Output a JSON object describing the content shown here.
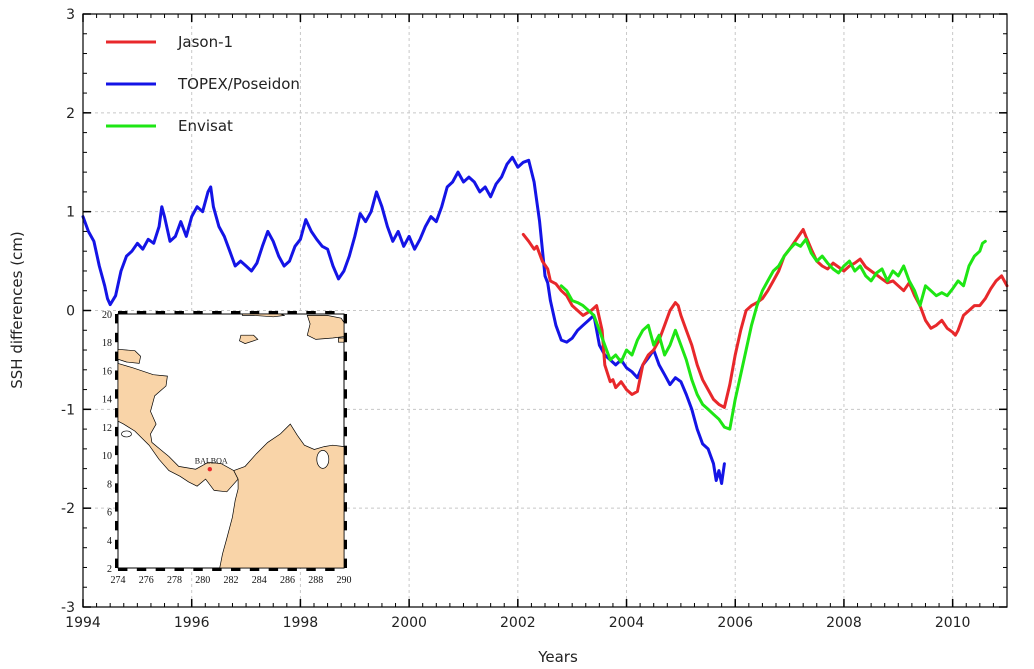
{
  "chart_data": {
    "type": "line",
    "xlabel": "Years",
    "ylabel": "SSH differences (cm)",
    "xlim": [
      1994,
      2011
    ],
    "ylim": [
      -3,
      3
    ],
    "x_ticks": [
      "1994",
      "1996",
      "1998",
      "2000",
      "2002",
      "2004",
      "2006",
      "2008",
      "2010"
    ],
    "y_ticks": [
      "3",
      "2",
      "1",
      "0",
      "-1",
      "-2",
      "-3"
    ],
    "grid": true,
    "legend_position": "top-left",
    "series": [
      {
        "name": "Jason-1",
        "color": "#e8282b",
        "points": [
          [
            2002.1,
            0.77
          ],
          [
            2002.2,
            0.7
          ],
          [
            2002.3,
            0.62
          ],
          [
            2002.35,
            0.65
          ],
          [
            2002.45,
            0.5
          ],
          [
            2002.55,
            0.42
          ],
          [
            2002.6,
            0.3
          ],
          [
            2002.7,
            0.27
          ],
          [
            2002.8,
            0.2
          ],
          [
            2002.9,
            0.15
          ],
          [
            2003.0,
            0.05
          ],
          [
            2003.1,
            0.0
          ],
          [
            2003.2,
            -0.05
          ],
          [
            2003.35,
            0.0
          ],
          [
            2003.45,
            0.05
          ],
          [
            2003.55,
            -0.2
          ],
          [
            2003.6,
            -0.55
          ],
          [
            2003.7,
            -0.72
          ],
          [
            2003.75,
            -0.7
          ],
          [
            2003.8,
            -0.78
          ],
          [
            2003.9,
            -0.72
          ],
          [
            2004.0,
            -0.8
          ],
          [
            2004.1,
            -0.85
          ],
          [
            2004.2,
            -0.82
          ],
          [
            2004.3,
            -0.55
          ],
          [
            2004.4,
            -0.45
          ],
          [
            2004.5,
            -0.4
          ],
          [
            2004.6,
            -0.3
          ],
          [
            2004.7,
            -0.15
          ],
          [
            2004.8,
            0.0
          ],
          [
            2004.9,
            0.08
          ],
          [
            2004.95,
            0.05
          ],
          [
            2005.0,
            -0.05
          ],
          [
            2005.1,
            -0.2
          ],
          [
            2005.2,
            -0.35
          ],
          [
            2005.3,
            -0.55
          ],
          [
            2005.4,
            -0.7
          ],
          [
            2005.5,
            -0.8
          ],
          [
            2005.6,
            -0.9
          ],
          [
            2005.7,
            -0.95
          ],
          [
            2005.8,
            -0.98
          ],
          [
            2005.9,
            -0.75
          ],
          [
            2006.0,
            -0.45
          ],
          [
            2006.1,
            -0.2
          ],
          [
            2006.2,
            0.0
          ],
          [
            2006.3,
            0.05
          ],
          [
            2006.4,
            0.08
          ],
          [
            2006.5,
            0.12
          ],
          [
            2006.6,
            0.2
          ],
          [
            2006.7,
            0.3
          ],
          [
            2006.8,
            0.4
          ],
          [
            2006.9,
            0.55
          ],
          [
            2007.0,
            0.62
          ],
          [
            2007.1,
            0.7
          ],
          [
            2007.2,
            0.78
          ],
          [
            2007.25,
            0.82
          ],
          [
            2007.3,
            0.75
          ],
          [
            2007.4,
            0.62
          ],
          [
            2007.5,
            0.5
          ],
          [
            2007.6,
            0.45
          ],
          [
            2007.7,
            0.42
          ],
          [
            2007.8,
            0.48
          ],
          [
            2007.9,
            0.44
          ],
          [
            2008.0,
            0.4
          ],
          [
            2008.1,
            0.45
          ],
          [
            2008.2,
            0.48
          ],
          [
            2008.3,
            0.52
          ],
          [
            2008.4,
            0.44
          ],
          [
            2008.5,
            0.4
          ],
          [
            2008.6,
            0.36
          ],
          [
            2008.7,
            0.32
          ],
          [
            2008.8,
            0.28
          ],
          [
            2008.9,
            0.3
          ],
          [
            2009.0,
            0.25
          ],
          [
            2009.1,
            0.2
          ],
          [
            2009.2,
            0.28
          ],
          [
            2009.3,
            0.15
          ],
          [
            2009.4,
            0.05
          ],
          [
            2009.5,
            -0.1
          ],
          [
            2009.6,
            -0.18
          ],
          [
            2009.7,
            -0.15
          ],
          [
            2009.8,
            -0.1
          ],
          [
            2009.9,
            -0.18
          ],
          [
            2010.0,
            -0.22
          ],
          [
            2010.05,
            -0.25
          ],
          [
            2010.1,
            -0.2
          ],
          [
            2010.2,
            -0.05
          ],
          [
            2010.3,
            0.0
          ],
          [
            2010.4,
            0.05
          ],
          [
            2010.5,
            0.05
          ],
          [
            2010.6,
            0.12
          ],
          [
            2010.7,
            0.22
          ],
          [
            2010.8,
            0.3
          ],
          [
            2010.9,
            0.35
          ],
          [
            2010.95,
            0.3
          ],
          [
            2011.0,
            0.25
          ]
        ]
      },
      {
        "name": "TOPEX/Poseidon",
        "color": "#1414e6",
        "points": [
          [
            1994.0,
            0.95
          ],
          [
            1994.1,
            0.8
          ],
          [
            1994.2,
            0.7
          ],
          [
            1994.3,
            0.45
          ],
          [
            1994.4,
            0.25
          ],
          [
            1994.45,
            0.12
          ],
          [
            1994.5,
            0.06
          ],
          [
            1994.6,
            0.15
          ],
          [
            1994.7,
            0.4
          ],
          [
            1994.8,
            0.55
          ],
          [
            1994.9,
            0.6
          ],
          [
            1995.0,
            0.68
          ],
          [
            1995.1,
            0.62
          ],
          [
            1995.2,
            0.72
          ],
          [
            1995.3,
            0.68
          ],
          [
            1995.4,
            0.85
          ],
          [
            1995.45,
            1.05
          ],
          [
            1995.5,
            0.95
          ],
          [
            1995.6,
            0.7
          ],
          [
            1995.7,
            0.75
          ],
          [
            1995.8,
            0.9
          ],
          [
            1995.9,
            0.75
          ],
          [
            1996.0,
            0.95
          ],
          [
            1996.1,
            1.05
          ],
          [
            1996.2,
            1.0
          ],
          [
            1996.3,
            1.2
          ],
          [
            1996.35,
            1.25
          ],
          [
            1996.4,
            1.05
          ],
          [
            1996.5,
            0.85
          ],
          [
            1996.6,
            0.75
          ],
          [
            1996.7,
            0.6
          ],
          [
            1996.8,
            0.45
          ],
          [
            1996.9,
            0.5
          ],
          [
            1997.0,
            0.45
          ],
          [
            1997.1,
            0.4
          ],
          [
            1997.2,
            0.48
          ],
          [
            1997.3,
            0.65
          ],
          [
            1997.4,
            0.8
          ],
          [
            1997.5,
            0.7
          ],
          [
            1997.6,
            0.55
          ],
          [
            1997.7,
            0.45
          ],
          [
            1997.8,
            0.5
          ],
          [
            1997.9,
            0.65
          ],
          [
            1998.0,
            0.72
          ],
          [
            1998.1,
            0.92
          ],
          [
            1998.2,
            0.8
          ],
          [
            1998.3,
            0.72
          ],
          [
            1998.4,
            0.65
          ],
          [
            1998.5,
            0.62
          ],
          [
            1998.6,
            0.45
          ],
          [
            1998.7,
            0.32
          ],
          [
            1998.8,
            0.4
          ],
          [
            1998.9,
            0.55
          ],
          [
            1999.0,
            0.75
          ],
          [
            1999.1,
            0.98
          ],
          [
            1999.2,
            0.9
          ],
          [
            1999.3,
            1.0
          ],
          [
            1999.4,
            1.2
          ],
          [
            1999.5,
            1.05
          ],
          [
            1999.6,
            0.85
          ],
          [
            1999.7,
            0.7
          ],
          [
            1999.8,
            0.8
          ],
          [
            1999.9,
            0.65
          ],
          [
            2000.0,
            0.75
          ],
          [
            2000.1,
            0.62
          ],
          [
            2000.2,
            0.72
          ],
          [
            2000.3,
            0.85
          ],
          [
            2000.4,
            0.95
          ],
          [
            2000.5,
            0.9
          ],
          [
            2000.6,
            1.05
          ],
          [
            2000.7,
            1.25
          ],
          [
            2000.8,
            1.3
          ],
          [
            2000.9,
            1.4
          ],
          [
            2001.0,
            1.3
          ],
          [
            2001.1,
            1.35
          ],
          [
            2001.2,
            1.3
          ],
          [
            2001.3,
            1.2
          ],
          [
            2001.4,
            1.25
          ],
          [
            2001.5,
            1.15
          ],
          [
            2001.6,
            1.28
          ],
          [
            2001.7,
            1.35
          ],
          [
            2001.8,
            1.48
          ],
          [
            2001.9,
            1.55
          ],
          [
            2002.0,
            1.45
          ],
          [
            2002.1,
            1.5
          ],
          [
            2002.2,
            1.52
          ],
          [
            2002.3,
            1.3
          ],
          [
            2002.4,
            0.9
          ],
          [
            2002.5,
            0.35
          ],
          [
            2002.55,
            0.28
          ],
          [
            2002.6,
            0.1
          ],
          [
            2002.7,
            -0.15
          ],
          [
            2002.8,
            -0.3
          ],
          [
            2002.9,
            -0.32
          ],
          [
            2003.0,
            -0.28
          ],
          [
            2003.1,
            -0.2
          ],
          [
            2003.2,
            -0.15
          ],
          [
            2003.3,
            -0.1
          ],
          [
            2003.4,
            -0.05
          ],
          [
            2003.5,
            -0.35
          ],
          [
            2003.6,
            -0.45
          ],
          [
            2003.7,
            -0.5
          ],
          [
            2003.8,
            -0.55
          ],
          [
            2003.9,
            -0.5
          ],
          [
            2004.0,
            -0.58
          ],
          [
            2004.1,
            -0.62
          ],
          [
            2004.2,
            -0.68
          ],
          [
            2004.3,
            -0.55
          ],
          [
            2004.4,
            -0.48
          ],
          [
            2004.5,
            -0.4
          ],
          [
            2004.6,
            -0.55
          ],
          [
            2004.7,
            -0.65
          ],
          [
            2004.8,
            -0.75
          ],
          [
            2004.9,
            -0.68
          ],
          [
            2005.0,
            -0.72
          ],
          [
            2005.1,
            -0.85
          ],
          [
            2005.2,
            -1.0
          ],
          [
            2005.3,
            -1.2
          ],
          [
            2005.4,
            -1.35
          ],
          [
            2005.5,
            -1.4
          ],
          [
            2005.6,
            -1.55
          ],
          [
            2005.65,
            -1.72
          ],
          [
            2005.7,
            -1.62
          ],
          [
            2005.75,
            -1.75
          ],
          [
            2005.8,
            -1.55
          ]
        ]
      },
      {
        "name": "Envisat",
        "color": "#1ee614",
        "points": [
          [
            2002.8,
            0.25
          ],
          [
            2002.9,
            0.2
          ],
          [
            2003.0,
            0.1
          ],
          [
            2003.1,
            0.08
          ],
          [
            2003.2,
            0.05
          ],
          [
            2003.3,
            0.0
          ],
          [
            2003.4,
            -0.05
          ],
          [
            2003.5,
            -0.2
          ],
          [
            2003.6,
            -0.35
          ],
          [
            2003.7,
            -0.5
          ],
          [
            2003.8,
            -0.45
          ],
          [
            2003.9,
            -0.52
          ],
          [
            2004.0,
            -0.4
          ],
          [
            2004.1,
            -0.45
          ],
          [
            2004.2,
            -0.3
          ],
          [
            2004.3,
            -0.2
          ],
          [
            2004.4,
            -0.15
          ],
          [
            2004.5,
            -0.35
          ],
          [
            2004.6,
            -0.25
          ],
          [
            2004.7,
            -0.45
          ],
          [
            2004.8,
            -0.35
          ],
          [
            2004.9,
            -0.2
          ],
          [
            2005.0,
            -0.35
          ],
          [
            2005.1,
            -0.5
          ],
          [
            2005.2,
            -0.7
          ],
          [
            2005.3,
            -0.85
          ],
          [
            2005.4,
            -0.95
          ],
          [
            2005.5,
            -1.0
          ],
          [
            2005.6,
            -1.05
          ],
          [
            2005.7,
            -1.1
          ],
          [
            2005.8,
            -1.18
          ],
          [
            2005.9,
            -1.2
          ],
          [
            2006.0,
            -0.9
          ],
          [
            2006.1,
            -0.65
          ],
          [
            2006.2,
            -0.4
          ],
          [
            2006.3,
            -0.15
          ],
          [
            2006.4,
            0.05
          ],
          [
            2006.5,
            0.2
          ],
          [
            2006.6,
            0.3
          ],
          [
            2006.7,
            0.4
          ],
          [
            2006.8,
            0.45
          ],
          [
            2006.9,
            0.55
          ],
          [
            2007.0,
            0.62
          ],
          [
            2007.1,
            0.68
          ],
          [
            2007.2,
            0.65
          ],
          [
            2007.3,
            0.72
          ],
          [
            2007.4,
            0.58
          ],
          [
            2007.5,
            0.5
          ],
          [
            2007.6,
            0.55
          ],
          [
            2007.7,
            0.48
          ],
          [
            2007.8,
            0.42
          ],
          [
            2007.9,
            0.38
          ],
          [
            2008.0,
            0.45
          ],
          [
            2008.1,
            0.5
          ],
          [
            2008.2,
            0.4
          ],
          [
            2008.3,
            0.45
          ],
          [
            2008.4,
            0.35
          ],
          [
            2008.5,
            0.3
          ],
          [
            2008.6,
            0.38
          ],
          [
            2008.7,
            0.42
          ],
          [
            2008.8,
            0.3
          ],
          [
            2008.9,
            0.4
          ],
          [
            2009.0,
            0.35
          ],
          [
            2009.1,
            0.45
          ],
          [
            2009.2,
            0.3
          ],
          [
            2009.3,
            0.2
          ],
          [
            2009.4,
            0.05
          ],
          [
            2009.5,
            0.25
          ],
          [
            2009.6,
            0.2
          ],
          [
            2009.7,
            0.15
          ],
          [
            2009.8,
            0.18
          ],
          [
            2009.9,
            0.15
          ],
          [
            2010.0,
            0.22
          ],
          [
            2010.1,
            0.3
          ],
          [
            2010.2,
            0.25
          ],
          [
            2010.3,
            0.45
          ],
          [
            2010.4,
            0.55
          ],
          [
            2010.5,
            0.6
          ],
          [
            2010.55,
            0.68
          ],
          [
            2010.6,
            0.7
          ]
        ]
      }
    ],
    "inset_map": {
      "x_ticks": [
        "274",
        "276",
        "278",
        "280",
        "282",
        "284",
        "286",
        "288",
        "290"
      ],
      "y_ticks": [
        "20",
        "18",
        "16",
        "14",
        "12",
        "10",
        "8",
        "6",
        "4",
        "2"
      ],
      "label": "BALBOA",
      "land_color": "#f9d4a8",
      "marker_color": "#e8282b"
    }
  }
}
